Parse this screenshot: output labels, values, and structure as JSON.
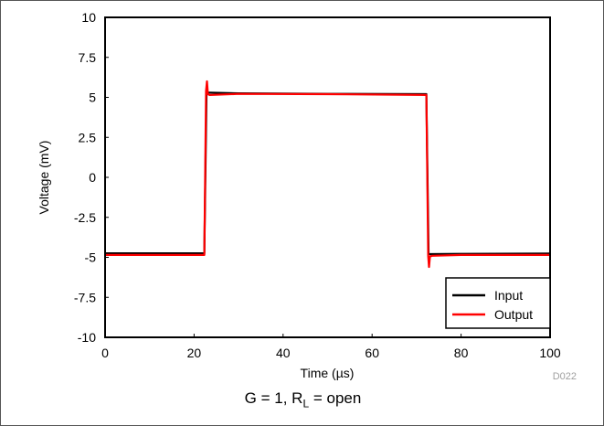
{
  "chart_data": {
    "type": "line",
    "xlabel_main": "Time (",
    "xlabel_unit": "µs",
    "xlabel_end": ")",
    "ylabel": "Voltage (mV)",
    "xlim": [
      0,
      100
    ],
    "ylim": [
      -10,
      10
    ],
    "x_ticks": [
      0,
      20,
      40,
      60,
      80,
      100
    ],
    "y_ticks": [
      10,
      7.5,
      5,
      2.5,
      0,
      -2.5,
      -5,
      -7.5,
      -10
    ],
    "x_tick_labels": [
      "0",
      "20",
      "40",
      "60",
      "80",
      "100"
    ],
    "y_tick_labels": [
      "10",
      "7.5",
      "5",
      "2.5",
      "0",
      "-2.5",
      "-5",
      "-7.5",
      "-10"
    ],
    "grid": false,
    "legend_position": "bottom-right",
    "series": [
      {
        "name": "Input",
        "color": "#000000",
        "x": [
          0,
          22.3,
          22.8,
          23.3,
          30,
          50,
          72.2,
          72.7,
          73.2,
          80,
          100
        ],
        "y": [
          -4.75,
          -4.75,
          5.3,
          5.3,
          5.25,
          5.22,
          5.2,
          -4.8,
          -4.8,
          -4.78,
          -4.76
        ]
      },
      {
        "name": "Output",
        "color": "#ff0000",
        "x": [
          0,
          22.3,
          22.7,
          22.9,
          23.1,
          23.5,
          30,
          50,
          72.2,
          72.6,
          72.8,
          73.0,
          73.5,
          80,
          100
        ],
        "y": [
          -4.85,
          -4.85,
          5.4,
          6.0,
          5.2,
          5.15,
          5.22,
          5.2,
          5.15,
          -4.9,
          -5.6,
          -4.95,
          -4.9,
          -4.85,
          -4.85
        ]
      }
    ]
  },
  "figure_id": "D022",
  "caption": {
    "main": "G = 1, R",
    "subscript": "L",
    "suffix": " = open"
  }
}
